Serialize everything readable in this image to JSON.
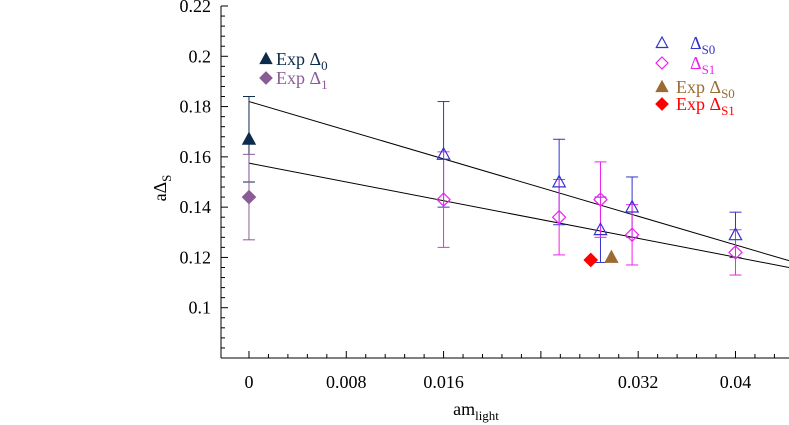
{
  "chart_data": {
    "type": "scatter",
    "title": "",
    "xlabel": {
      "base": "am",
      "sub": "light"
    },
    "ylabel": {
      "base": "aΔ",
      "sub": "S"
    },
    "xlim": [
      -0.0023,
      0.0444
    ],
    "ylim": [
      0.08,
      0.22
    ],
    "x_ticks": [
      0,
      0.008,
      0.016,
      0.032,
      0.04
    ],
    "x_tick_labels": [
      "0",
      "0.008",
      "0.016",
      "0.032",
      "0.04"
    ],
    "y_ticks": [
      0.1,
      0.12,
      0.14,
      0.16,
      0.18,
      0.2,
      0.22
    ],
    "y_tick_labels": [
      "0.1",
      "0.12",
      "0.14",
      "0.16",
      "0.18",
      "0.2",
      "0.22"
    ],
    "grid": false,
    "series": [
      {
        "name": "Δ_S0",
        "label_base": "Δ",
        "label_sub": "S0",
        "marker": "open-triangle",
        "color": "#3333cc",
        "points": [
          {
            "x": 0.016,
            "y": 0.161,
            "err_lo": 0.021,
            "err_hi": 0.021
          },
          {
            "x": 0.0255,
            "y": 0.15,
            "err_lo": 0.017,
            "err_hi": 0.017
          },
          {
            "x": 0.0289,
            "y": 0.131,
            "err_lo": 0.013,
            "err_hi": 0.013
          },
          {
            "x": 0.0315,
            "y": 0.14,
            "err_lo": 0.012,
            "err_hi": 0.012
          },
          {
            "x": 0.04,
            "y": 0.129,
            "err_lo": 0.009,
            "err_hi": 0.009
          }
        ]
      },
      {
        "name": "Δ_S1",
        "label_base": "Δ",
        "label_sub": "S1",
        "marker": "open-diamond",
        "color": "#ee22ee",
        "points": [
          {
            "x": 0.016,
            "y": 0.143,
            "err_lo": 0.019,
            "err_hi": 0.019
          },
          {
            "x": 0.0255,
            "y": 0.136,
            "err_lo": 0.015,
            "err_hi": 0.015
          },
          {
            "x": 0.0289,
            "y": 0.143,
            "err_lo": 0.015,
            "err_hi": 0.015
          },
          {
            "x": 0.0315,
            "y": 0.129,
            "err_lo": 0.012,
            "err_hi": 0.012
          },
          {
            "x": 0.04,
            "y": 0.122,
            "err_lo": 0.009,
            "err_hi": 0.009
          }
        ]
      },
      {
        "name": "Exp Δ_0",
        "label_base": "Exp Δ",
        "label_sub": "0",
        "marker": "filled-triangle",
        "color": "#0d2b4d",
        "points": [
          {
            "x": 0,
            "y": 0.167,
            "err_lo": 0.017,
            "err_hi": 0.017
          }
        ]
      },
      {
        "name": "Exp Δ_1",
        "label_base": "Exp Δ",
        "label_sub": "1",
        "marker": "filled-diamond",
        "color": "#8a5c96",
        "points": [
          {
            "x": 0,
            "y": 0.144,
            "err_lo": 0.017,
            "err_hi": 0.017
          }
        ]
      },
      {
        "name": "Exp Δ_S0",
        "label_base": "Exp Δ",
        "label_sub": "S0",
        "marker": "filled-triangle",
        "color": "#9c6a33",
        "points": [
          {
            "x": 0.0298,
            "y": 0.12
          }
        ]
      },
      {
        "name": "Exp Δ_S1",
        "label_base": "Exp Δ",
        "label_sub": "S1",
        "marker": "filled-diamond",
        "color": "#ff0000",
        "points": [
          {
            "x": 0.0281,
            "y": 0.119
          }
        ]
      }
    ],
    "fit_lines": [
      {
        "from": [
          0,
          0.182
        ],
        "to": [
          0.0444,
          0.1187
        ],
        "color": "#000000"
      },
      {
        "from": [
          0,
          0.1575
        ],
        "to": [
          0.0444,
          0.116
        ],
        "color": "#000000"
      }
    ],
    "legend_left": [
      "Exp Δ_0",
      "Exp Δ_1"
    ],
    "legend_right": [
      "Δ_S0",
      "Δ_S1",
      "Exp Δ_S0",
      "Exp Δ_S1"
    ]
  }
}
